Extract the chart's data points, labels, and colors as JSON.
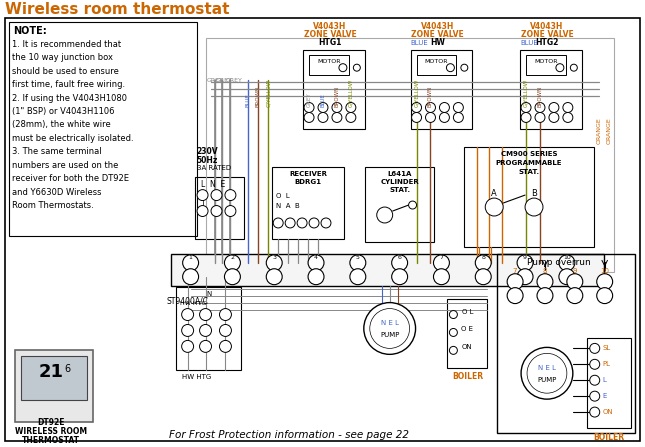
{
  "title": "Wireless room thermostat",
  "title_color": "#cc6600",
  "bg_color": "#ffffff",
  "valve_labels": [
    [
      "V4043H",
      "ZONE VALVE",
      "HTG1"
    ],
    [
      "V4043H",
      "ZONE VALVE",
      "HW"
    ],
    [
      "V4043H",
      "ZONE VALVE",
      "HTG2"
    ]
  ],
  "note_lines": [
    "1. It is recommended that",
    "the 10 way junction box",
    "should be used to ensure",
    "first time, fault free wiring.",
    "2. If using the V4043H1080",
    "(1\" BSP) or V4043H1106",
    "(28mm), the white wire",
    "must be electrically isolated.",
    "3. The same terminal",
    "numbers are used on the",
    "receiver for both the DT92E",
    "and Y6630D Wireless",
    "Room Thermostats."
  ],
  "frost_label": "For Frost Protection information - see page 22",
  "dt92e_lines": [
    "DT92E",
    "WIRELESS ROOM",
    "THERMOSTAT"
  ],
  "wire_grey": "#888888",
  "wire_blue": "#4466cc",
  "wire_brown": "#884422",
  "wire_gy": "#778800",
  "wire_orange": "#cc6600",
  "wire_black": "#222222",
  "col_orange": "#cc6600",
  "col_blue": "#4466cc",
  "col_brown": "#884422",
  "col_gy": "#778800"
}
